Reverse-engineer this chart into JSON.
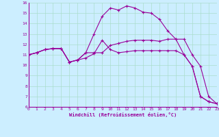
{
  "xlabel": "Windchill (Refroidissement éolien,°C)",
  "background_color": "#cceeff",
  "line_color": "#990099",
  "xlim": [
    0,
    23
  ],
  "ylim": [
    6,
    16
  ],
  "xticks": [
    0,
    1,
    2,
    3,
    4,
    5,
    6,
    7,
    8,
    9,
    10,
    11,
    12,
    13,
    14,
    15,
    16,
    17,
    18,
    19,
    20,
    21,
    22,
    23
  ],
  "yticks": [
    6,
    7,
    8,
    9,
    10,
    11,
    12,
    13,
    14,
    15,
    16
  ],
  "grid_color": "#aaddcc",
  "lines": [
    {
      "x": [
        0,
        1,
        2,
        3,
        4,
        5,
        6,
        7,
        8,
        9,
        10,
        11,
        12,
        13,
        14,
        15,
        16,
        17,
        18,
        19,
        20,
        21,
        22,
        23
      ],
      "y": [
        11,
        11.2,
        11.5,
        11.6,
        11.6,
        10.3,
        10.5,
        10.7,
        11.1,
        12.4,
        11.5,
        11.2,
        11.3,
        11.4,
        11.4,
        11.4,
        11.4,
        11.4,
        11.4,
        11.0,
        9.9,
        7.0,
        6.5,
        6.3
      ]
    },
    {
      "x": [
        0,
        1,
        2,
        3,
        4,
        5,
        6,
        7,
        8,
        9,
        10,
        11,
        12,
        13,
        14,
        15,
        16,
        17,
        18,
        19,
        20,
        21,
        22,
        23
      ],
      "y": [
        11,
        11.2,
        11.5,
        11.6,
        11.6,
        10.3,
        10.5,
        11.2,
        11.2,
        11.2,
        11.9,
        12.1,
        12.3,
        12.4,
        12.4,
        12.4,
        12.3,
        12.5,
        12.5,
        12.5,
        11.0,
        9.9,
        7.0,
        6.3
      ]
    },
    {
      "x": [
        0,
        1,
        2,
        3,
        4,
        5,
        6,
        7,
        8,
        9,
        10,
        11,
        12,
        13,
        14,
        15,
        16,
        17,
        18,
        19,
        20,
        21,
        22,
        23
      ],
      "y": [
        11,
        11.2,
        11.5,
        11.6,
        11.6,
        10.3,
        10.5,
        11.2,
        13.0,
        14.7,
        15.5,
        15.3,
        15.7,
        15.5,
        15.1,
        15.0,
        14.4,
        13.3,
        12.5,
        11.0,
        9.9,
        7.0,
        6.5,
        6.3
      ]
    }
  ]
}
